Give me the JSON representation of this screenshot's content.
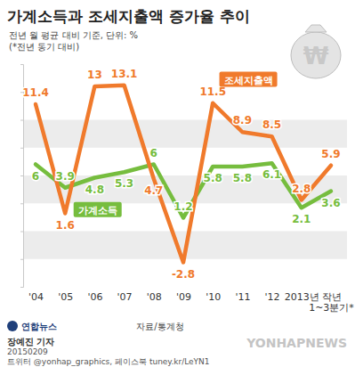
{
  "chart_data": {
    "type": "line",
    "title": "가계소득과 조세지출액 증가율 추이",
    "subtitle": [
      "전년 월 평균 대비 기준, 단위: %",
      "(*전년 동기 대비)"
    ],
    "categories": [
      "'04",
      "'05",
      "'06",
      "'07",
      "'08",
      "'09",
      "'10",
      "'11",
      "'12",
      "2013년",
      "작년 1~3분기*"
    ],
    "series": [
      {
        "name": "조세지출액",
        "color": "#f07a2c",
        "values": [
          11.4,
          1.6,
          13.0,
          13.1,
          4.7,
          -2.8,
          11.5,
          8.9,
          8.5,
          2.8,
          5.9
        ]
      },
      {
        "name": "가계소득",
        "color": "#76bd3e",
        "values": [
          6.0,
          3.9,
          4.8,
          5.3,
          6.0,
          1.2,
          5.8,
          5.8,
          6.1,
          2.1,
          3.6
        ]
      }
    ],
    "ylim": [
      -5,
      15
    ],
    "yticks": [
      -2.5,
      0,
      2.5,
      5,
      7.5,
      10,
      12.5
    ],
    "grid": true,
    "tick_labels": "x",
    "data_labels": true,
    "annotations": [
      "₩",
      "자료/통계청",
      "연합뉴스",
      "장예진 기자",
      "20150209",
      "트위터 @yonhap_graphics, 페이스북 tuney.kr/LeYN1",
      "YONHAPNEWS"
    ]
  }
}
